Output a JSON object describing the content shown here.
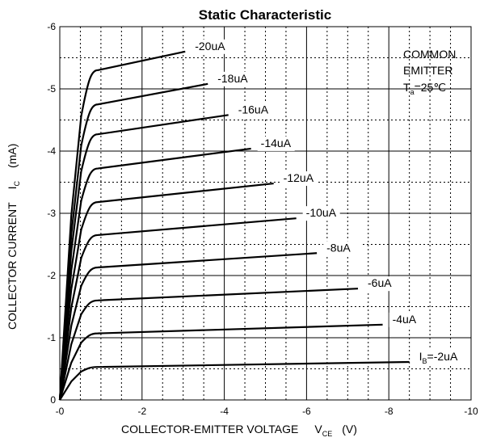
{
  "chart_data": {
    "type": "line",
    "title": "Static Characteristic",
    "xlabel": "COLLECTOR-EMITTER VOLTAGE",
    "xlabel_symbol": "V",
    "xlabel_subscript": "CE",
    "xlabel_unit": "(V)",
    "ylabel": "COLLECTOR CURRENT",
    "ylabel_symbol": "I",
    "ylabel_subscript": "C",
    "ylabel_unit": "(mA)",
    "xlim": [
      0,
      -10
    ],
    "ylim": [
      0,
      -6
    ],
    "x_ticks": [
      "-0",
      "-2",
      "-4",
      "-6",
      "-8",
      "-10"
    ],
    "y_ticks": [
      "0",
      "-1",
      "-2",
      "-3",
      "-4",
      "-5",
      "-6"
    ],
    "grid": "solid major, dotted minor",
    "annotation": {
      "line1": "COMMON",
      "line2": "EMITTER",
      "line3_prefix": "T",
      "line3_sub": "a",
      "line3_suffix": "=25℃"
    },
    "series": [
      {
        "name": "-20uA",
        "knee": -5.3,
        "end_x": -3.05,
        "end_y": -5.6
      },
      {
        "name": "-18uA",
        "knee": -4.75,
        "end_x": -3.6,
        "end_y": -5.08
      },
      {
        "name": "-16uA",
        "knee": -4.27,
        "end_x": -4.1,
        "end_y": -4.58
      },
      {
        "name": "-14uA",
        "knee": -3.72,
        "end_x": -4.65,
        "end_y": -4.04
      },
      {
        "name": "-12uA",
        "knee": -3.18,
        "end_x": -5.2,
        "end_y": -3.48
      },
      {
        "name": "-10uA",
        "knee": -2.65,
        "end_x": -5.75,
        "end_y": -2.92
      },
      {
        "name": "-8uA",
        "knee": -2.13,
        "end_x": -6.25,
        "end_y": -2.36
      },
      {
        "name": "-6uA",
        "knee": -1.6,
        "end_x": -7.25,
        "end_y": -1.79
      },
      {
        "name": "-4uA",
        "knee": -1.07,
        "end_x": -7.85,
        "end_y": -1.21
      },
      {
        "name": "I_B=-2uA",
        "name_prefix": "I",
        "name_sub": "B",
        "name_suffix": "=-2uA",
        "knee": -0.53,
        "end_x": -8.5,
        "end_y": -0.61
      }
    ]
  }
}
